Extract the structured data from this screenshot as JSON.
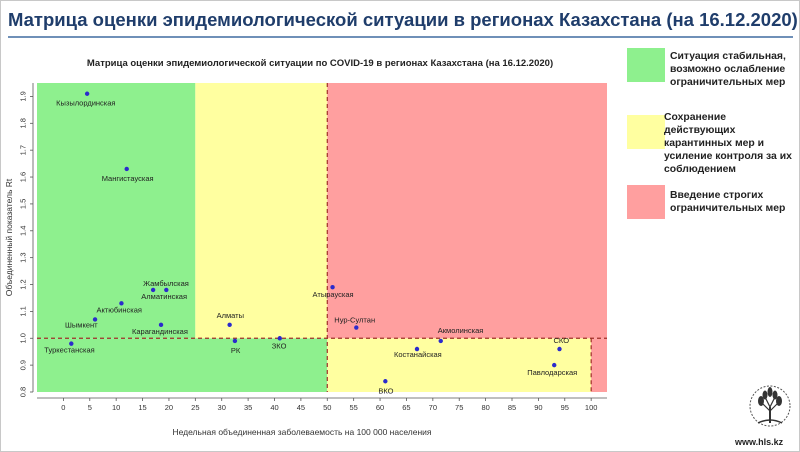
{
  "slide": {
    "title": "Матрица оценки эпидемиологической ситуации в регионах Казахстана (на 16.12.2020)",
    "website": "www.hls.kz"
  },
  "legend": [
    {
      "color": "#8ef08e",
      "text": "Ситуация стабильная, возможно ослабление ограничительных мер"
    },
    {
      "color": "#ffffa0",
      "text": "Сохранение действующих карантинных мер и усиление контроля за их соблюдением"
    },
    {
      "color": "#ff9f9f",
      "text": "Введение строгих ограничительных мер"
    }
  ],
  "chart_data": {
    "type": "scatter",
    "title": "Матрица оценки эпидемиологической ситуации по COVID-19 в регионах Казахстана (на 16.12.2020)",
    "xlabel": "Недельная объединенная заболеваемость на 100 000 населения",
    "ylabel": "Объединенный показатель Rt",
    "xlim": [
      -5,
      103
    ],
    "ylim": [
      0.8,
      1.95
    ],
    "x_ticks": [
      0,
      5,
      10,
      15,
      20,
      25,
      30,
      35,
      40,
      45,
      50,
      55,
      60,
      65,
      70,
      75,
      80,
      85,
      90,
      95,
      100
    ],
    "y_ticks": [
      0.8,
      0.9,
      1.0,
      1.1,
      1.2,
      1.3,
      1.4,
      1.5,
      1.6,
      1.7,
      1.8,
      1.9
    ],
    "zones": [
      {
        "name": "green",
        "x": [
          -5,
          25
        ],
        "y": [
          1.0,
          1.95
        ],
        "color": "#8ef08e"
      },
      {
        "name": "green",
        "x": [
          -5,
          50
        ],
        "y": [
          0.8,
          1.0
        ],
        "color": "#8ef08e"
      },
      {
        "name": "yellow",
        "x": [
          25,
          50
        ],
        "y": [
          1.0,
          1.95
        ],
        "color": "#ffffa0"
      },
      {
        "name": "yellow",
        "x": [
          50,
          100
        ],
        "y": [
          0.8,
          1.0
        ],
        "color": "#ffffa0"
      },
      {
        "name": "red",
        "x": [
          50,
          103
        ],
        "y": [
          1.0,
          1.95
        ],
        "color": "#ff9f9f"
      },
      {
        "name": "red",
        "x": [
          100,
          103
        ],
        "y": [
          0.8,
          1.0
        ],
        "color": "#ff9f9f"
      }
    ],
    "thresholds": {
      "x": 50,
      "y": 1.0,
      "x_max": 100
    },
    "points": [
      {
        "label": "Кызылординская",
        "x": 4.5,
        "y": 1.91
      },
      {
        "label": "Мангистауская",
        "x": 12,
        "y": 1.63
      },
      {
        "label": "Жамбылская",
        "x": 17,
        "y": 1.18
      },
      {
        "label": "Алматинская",
        "x": 19.5,
        "y": 1.18
      },
      {
        "label": "Актюбинская",
        "x": 11,
        "y": 1.13
      },
      {
        "label": "Шымкент",
        "x": 6,
        "y": 1.07
      },
      {
        "label": "Карагандинская",
        "x": 18.5,
        "y": 1.05
      },
      {
        "label": "Туркестанская",
        "x": 1.5,
        "y": 0.98
      },
      {
        "label": "Алматы",
        "x": 31.5,
        "y": 1.05
      },
      {
        "label": "РК",
        "x": 32.5,
        "y": 0.99
      },
      {
        "label": "ЗКО",
        "x": 41,
        "y": 1.0
      },
      {
        "label": "Атырауская",
        "x": 51,
        "y": 1.19
      },
      {
        "label": "Нур-Султан",
        "x": 55.5,
        "y": 1.04
      },
      {
        "label": "Акмолинская",
        "x": 71.5,
        "y": 0.99
      },
      {
        "label": "Костанайская",
        "x": 67,
        "y": 0.96
      },
      {
        "label": "ВКО",
        "x": 61,
        "y": 0.84
      },
      {
        "label": "СКО",
        "x": 94,
        "y": 0.96
      },
      {
        "label": "Павлодарская",
        "x": 93,
        "y": 0.9
      }
    ]
  }
}
